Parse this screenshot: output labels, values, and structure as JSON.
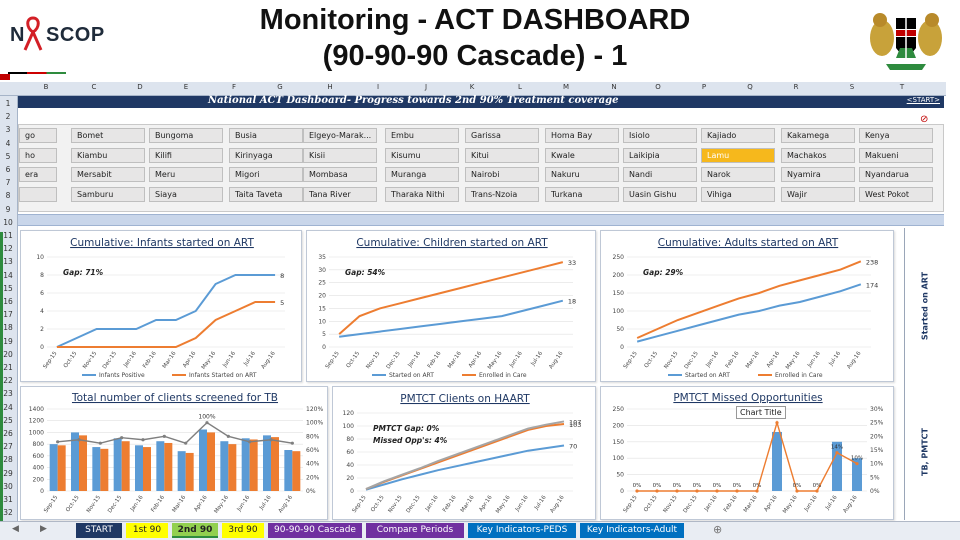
{
  "header": {
    "title_line1": "Monitoring -  ACT DASHBOARD",
    "title_line2": "(90-90-90 Cascade)  - 1",
    "logo_text": "SCOP",
    "logo_letter": "N"
  },
  "sheet": {
    "columns": [
      "B",
      "C",
      "D",
      "E",
      "F",
      "G",
      "H",
      "I",
      "J",
      "K",
      "L",
      "M",
      "N",
      "O",
      "P",
      "Q",
      "R",
      "S",
      "T"
    ],
    "rows": [
      "1",
      "2",
      "3",
      "4",
      "5",
      "6",
      "7",
      "8",
      "9",
      "10",
      "11",
      "12",
      "13",
      "14",
      "15",
      "16",
      "17",
      "18",
      "19",
      "20",
      "21",
      "22",
      "23",
      "24",
      "25",
      "26",
      "27",
      "28",
      "29",
      "30",
      "31",
      "32"
    ],
    "banner_title": "National ACT Dashboard- Progress towards 2nd 90% Treatment coverage",
    "start_link": "<START>",
    "filter_icon": "clear-filter-icon",
    "colors": {
      "banner": "#1f3864",
      "selected_county": "#f6b81c",
      "series_blue": "#5b9bd5",
      "series_orange": "#ed7d31"
    }
  },
  "counties": [
    [
      "go",
      "Bomet",
      "Bungoma",
      "Busia",
      "Elgeyo-Marak...",
      "Embu",
      "Garissa",
      "Homa Bay",
      "Isiolo",
      "Kajiado",
      "Kakamega",
      "Kenya"
    ],
    [
      "ho",
      "Kiambu",
      "Kilifi",
      "Kirinyaga",
      "Kisii",
      "Kisumu",
      "Kitui",
      "Kwale",
      "Laikipia",
      "Lamu",
      "Machakos",
      "Makueni"
    ],
    [
      "era",
      "Mersabit",
      "Meru",
      "Migori",
      "Mombasa",
      "Muranga",
      "Nairobi",
      "Nakuru",
      "Nandi",
      "Narok",
      "Nyamira",
      "Nyandarua"
    ],
    [
      "",
      "Samburu",
      "Siaya",
      "Taita Taveta",
      "Tana River",
      "Tharaka Nithi",
      "Trans-Nzoia",
      "Turkana",
      "Uasin Gishu",
      "Vihiga",
      "Wajir",
      "West Pokot"
    ]
  ],
  "selected_county": "Lamu",
  "side_labels": [
    "Started on ART",
    "TB, PMTCT"
  ],
  "tabs": [
    {
      "label": "START",
      "bg": "#1f3864",
      "fg": "#ffffff"
    },
    {
      "label": "1st 90",
      "bg": "#ffff00",
      "fg": "#222222"
    },
    {
      "label": "2nd 90",
      "bg": "#92d050",
      "fg": "#222222"
    },
    {
      "label": "3rd 90",
      "bg": "#ffff00",
      "fg": "#222222"
    },
    {
      "label": "90-90-90 Cascade",
      "bg": "#7030a0",
      "fg": "#ffffff"
    },
    {
      "label": "Compare Periods",
      "bg": "#7030a0",
      "fg": "#ffffff"
    },
    {
      "label": "Key Indicators-PEDS",
      "bg": "#0070c0",
      "fg": "#ffffff"
    },
    {
      "label": "Key Indicators-Adult",
      "bg": "#0070c0",
      "fg": "#ffffff"
    }
  ],
  "active_tab": "2nd 90",
  "tooltip": "Chart Title",
  "chart_data": [
    {
      "type": "line",
      "title": "Cumulative: Infants started on ART",
      "annotation": "Gap:   71%",
      "x": [
        "Sep-15",
        "Oct-15",
        "Nov-15",
        "Dec-15",
        "Jan-16",
        "Feb-16",
        "Mar-16",
        "Apr-16",
        "May-16",
        "Jun-16",
        "Jul-16",
        "Aug-16"
      ],
      "ylim": [
        0,
        10
      ],
      "yticks": [
        "0",
        "2",
        "4",
        "6",
        "8",
        "10"
      ],
      "series": [
        {
          "name": "Infants Positive",
          "values": [
            0,
            1,
            2,
            2,
            2,
            3,
            3,
            4,
            7,
            8,
            8,
            8
          ],
          "end_label": "8"
        },
        {
          "name": "Infants Started on ART",
          "values": [
            0,
            0,
            0,
            0,
            0,
            0,
            0,
            1,
            3,
            4,
            5,
            5
          ],
          "end_label": "5"
        }
      ],
      "legend": "bottom"
    },
    {
      "type": "line",
      "title": "Cumulative: Children started on ART",
      "annotation": "Gap:   54%",
      "x": [
        "Sep-15",
        "Oct-15",
        "Nov-15",
        "Dec-15",
        "Jan-16",
        "Feb-16",
        "Mar-16",
        "Apr-16",
        "May-16",
        "Jun-16",
        "Jul-16",
        "Aug-16"
      ],
      "ylim": [
        0,
        35
      ],
      "yticks": [
        "0",
        "5",
        "10",
        "15",
        "20",
        "25",
        "30",
        "35"
      ],
      "series": [
        {
          "name": "Started on ART",
          "values": [
            4,
            5,
            6,
            7,
            8,
            9,
            10,
            11,
            12,
            14,
            16,
            18
          ],
          "end_label": "18"
        },
        {
          "name": "Enrolled in Care",
          "values": [
            5,
            12,
            15,
            17,
            19,
            21,
            23,
            25,
            27,
            29,
            31,
            33
          ],
          "end_label": "33"
        }
      ],
      "legend": "bottom"
    },
    {
      "type": "line",
      "title": "Cumulative: Adults started on ART",
      "annotation": "Gap:   29%",
      "x": [
        "Sep-15",
        "Oct-15",
        "Nov-15",
        "Dec-15",
        "Jan-16",
        "Feb-16",
        "Mar-16",
        "Apr-16",
        "May-16",
        "Jun-16",
        "Jul-16",
        "Aug-16"
      ],
      "ylim": [
        0,
        250
      ],
      "yticks": [
        "0",
        "50",
        "100",
        "150",
        "200",
        "250"
      ],
      "series": [
        {
          "name": "Started on ART",
          "values": [
            15,
            30,
            45,
            60,
            75,
            90,
            100,
            115,
            125,
            140,
            155,
            174
          ],
          "end_label": "174"
        },
        {
          "name": "Enrolled in Care",
          "values": [
            25,
            50,
            75,
            95,
            115,
            135,
            150,
            170,
            185,
            200,
            215,
            238
          ],
          "end_label": "238"
        }
      ],
      "legend": "bottom"
    },
    {
      "type": "bar",
      "title": "Total number of clients screened for TB",
      "x": [
        "Sep-15",
        "Oct-15",
        "Nov-15",
        "Dec-15",
        "Jan-16",
        "Feb-16",
        "Mar-16",
        "Apr-16",
        "May-16",
        "Jun-16",
        "Jul-16",
        "Aug-16"
      ],
      "ylim": [
        0,
        1400
      ],
      "yticks": [
        "0",
        "200",
        "400",
        "600",
        "800",
        "1000",
        "1200",
        "1400"
      ],
      "y2ticks": [
        "0%",
        "20%",
        "40%",
        "60%",
        "80%",
        "100%",
        "120%"
      ],
      "series": [
        {
          "name": "Blue",
          "values": [
            800,
            1000,
            750,
            900,
            780,
            850,
            680,
            1050,
            850,
            900,
            950,
            700
          ]
        },
        {
          "name": "Orange",
          "values": [
            780,
            950,
            720,
            850,
            750,
            820,
            650,
            1000,
            800,
            880,
            920,
            680
          ]
        },
        {
          "name": "Line",
          "values": [
            72,
            75,
            70,
            78,
            75,
            80,
            70,
            100,
            80,
            72,
            75,
            70
          ]
        }
      ],
      "data_labels": [
        "100%"
      ]
    },
    {
      "type": "line",
      "title": "PMTCT Clients on HAART",
      "annotation": "PMTCT Gap:     0%",
      "annotation2": "Missed Opp's:      4%",
      "x": [
        "Sep-15",
        "Oct-15",
        "Nov-15",
        "Dec-15",
        "Jan-16",
        "Feb-16",
        "Mar-16",
        "Apr-16",
        "May-16",
        "Jun-16",
        "Jul-16",
        "Aug-16"
      ],
      "ylim": [
        0,
        120
      ],
      "yticks": [
        "0",
        "20",
        "40",
        "60",
        "80",
        "100",
        "120"
      ],
      "series": [
        {
          "name": "Blue",
          "values": [
            2,
            10,
            18,
            25,
            32,
            38,
            44,
            50,
            56,
            62,
            66,
            70
          ],
          "end_label": "70"
        },
        {
          "name": "Orange",
          "values": [
            3,
            14,
            24,
            34,
            44,
            54,
            64,
            74,
            84,
            94,
            100,
            103
          ],
          "end_label": "103"
        },
        {
          "name": "Gray",
          "values": [
            3,
            15,
            25,
            35,
            46,
            56,
            66,
            76,
            86,
            96,
            102,
            107
          ],
          "end_label": "107"
        }
      ]
    },
    {
      "type": "bar",
      "title": "PMTCT Missed Opportunities",
      "x": [
        "Sep-15",
        "Oct-15",
        "Nov-15",
        "Dec-15",
        "Jan-16",
        "Feb-16",
        "Mar-16",
        "Apr-16",
        "May-16",
        "Jun-16",
        "Jul-16",
        "Aug-16"
      ],
      "ylim": [
        0,
        250
      ],
      "yticks": [
        "0",
        "50",
        "100",
        "150",
        "200",
        "250"
      ],
      "y2ticks": [
        "0%",
        "5%",
        "10%",
        "15%",
        "20%",
        "25%",
        "30%"
      ],
      "series": [
        {
          "name": "Bars",
          "values": [
            0,
            0,
            0,
            0,
            0,
            0,
            0,
            180,
            0,
            0,
            150,
            100
          ]
        },
        {
          "name": "Line",
          "values": [
            0,
            0,
            0,
            0,
            0,
            0,
            0,
            25,
            0,
            0,
            14,
            10
          ]
        }
      ],
      "point_labels": [
        "0%",
        "0%",
        "0%",
        "0%",
        "0%",
        "0%",
        "0%",
        "25%",
        "0%",
        "0%",
        "14%",
        "10%"
      ]
    }
  ]
}
